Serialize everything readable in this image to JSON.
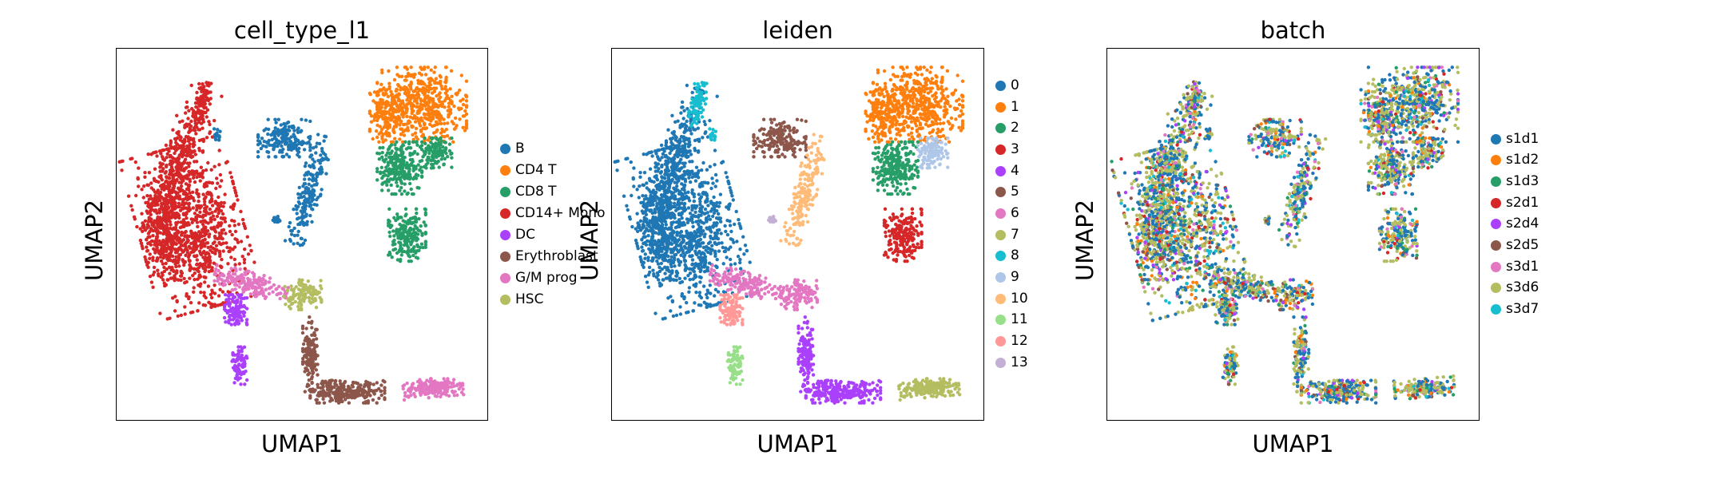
{
  "chart_data": [
    {
      "type": "scatter",
      "title": "cell_type_l1",
      "xlabel": "UMAP1",
      "ylabel": "UMAP2",
      "grid": false,
      "ticks": "none",
      "legend_position": "right",
      "legend": [
        {
          "label": "B",
          "color": "#1f77b4"
        },
        {
          "label": "CD4 T",
          "color": "#ff7f0e"
        },
        {
          "label": "CD8 T",
          "color": "#279e68"
        },
        {
          "label": "CD14+ Mono",
          "color": "#d62728"
        },
        {
          "label": "DC",
          "color": "#aa40fc"
        },
        {
          "label": "Erythroblast",
          "color": "#8c564b"
        },
        {
          "label": "G/M prog",
          "color": "#e377c2"
        },
        {
          "label": "HSC",
          "color": "#b5bd61"
        }
      ]
    },
    {
      "type": "scatter",
      "title": "leiden",
      "xlabel": "UMAP1",
      "ylabel": "UMAP2",
      "grid": false,
      "ticks": "none",
      "legend_position": "right",
      "legend": [
        {
          "label": "0",
          "color": "#1f77b4"
        },
        {
          "label": "1",
          "color": "#ff7f0e"
        },
        {
          "label": "2",
          "color": "#279e68"
        },
        {
          "label": "3",
          "color": "#d62728"
        },
        {
          "label": "4",
          "color": "#aa40fc"
        },
        {
          "label": "5",
          "color": "#8c564b"
        },
        {
          "label": "6",
          "color": "#e377c2"
        },
        {
          "label": "7",
          "color": "#b5bd61"
        },
        {
          "label": "8",
          "color": "#17becf"
        },
        {
          "label": "9",
          "color": "#aec7e8"
        },
        {
          "label": "10",
          "color": "#ffbb78"
        },
        {
          "label": "11",
          "color": "#98df8a"
        },
        {
          "label": "12",
          "color": "#ff9896"
        },
        {
          "label": "13",
          "color": "#c5b0d5"
        }
      ]
    },
    {
      "type": "scatter",
      "title": "batch",
      "xlabel": "UMAP1",
      "ylabel": "UMAP2",
      "grid": false,
      "ticks": "none",
      "legend_position": "right",
      "legend": [
        {
          "label": "s1d1",
          "color": "#1f77b4"
        },
        {
          "label": "s1d2",
          "color": "#ff7f0e"
        },
        {
          "label": "s1d3",
          "color": "#279e68"
        },
        {
          "label": "s2d1",
          "color": "#d62728"
        },
        {
          "label": "s2d4",
          "color": "#aa40fc"
        },
        {
          "label": "s2d5",
          "color": "#8c564b"
        },
        {
          "label": "s3d1",
          "color": "#e377c2"
        },
        {
          "label": "s3d6",
          "color": "#b5bd61"
        },
        {
          "label": "s3d7",
          "color": "#17becf"
        }
      ]
    }
  ]
}
